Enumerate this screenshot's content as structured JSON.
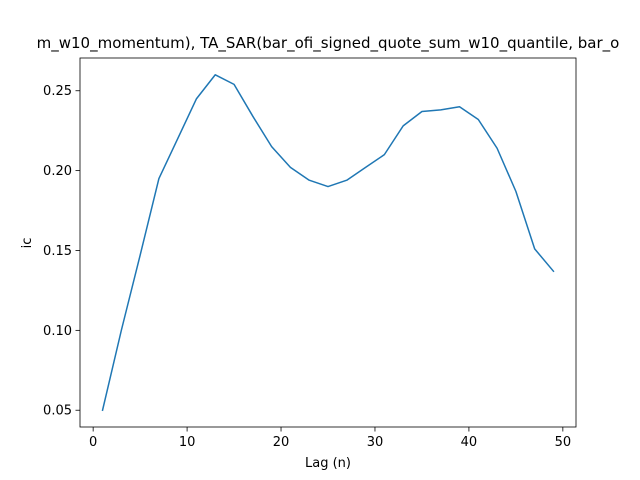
{
  "chart_data": {
    "type": "line",
    "title": "m_w10_momentum), TA_SAR(bar_ofi_signed_quote_sum_w10_quantile, bar_o",
    "xlabel": "Lag (n)",
    "ylabel": "ic",
    "xlim": [
      -1.4,
      51.4
    ],
    "ylim": [
      0.0395,
      0.2705
    ],
    "xticks": [
      0,
      10,
      20,
      30,
      40,
      50
    ],
    "yticks": [
      0.05,
      0.1,
      0.15,
      0.2,
      0.25
    ],
    "ytick_labels": [
      "0.05",
      "0.10",
      "0.15",
      "0.20",
      "0.25"
    ],
    "grid": false,
    "series": [
      {
        "color": "#1f77b4",
        "x": [
          1,
          3,
          5,
          7,
          9,
          11,
          13,
          15,
          17,
          19,
          21,
          23,
          25,
          27,
          29,
          31,
          33,
          35,
          37,
          39,
          41,
          43,
          45,
          47,
          49
        ],
        "y": [
          0.05,
          0.1,
          0.147,
          0.195,
          0.22,
          0.245,
          0.26,
          0.254,
          0.234,
          0.215,
          0.202,
          0.194,
          0.19,
          0.194,
          0.202,
          0.21,
          0.228,
          0.237,
          0.238,
          0.24,
          0.232,
          0.214,
          0.187,
          0.151,
          0.137
        ]
      }
    ]
  }
}
